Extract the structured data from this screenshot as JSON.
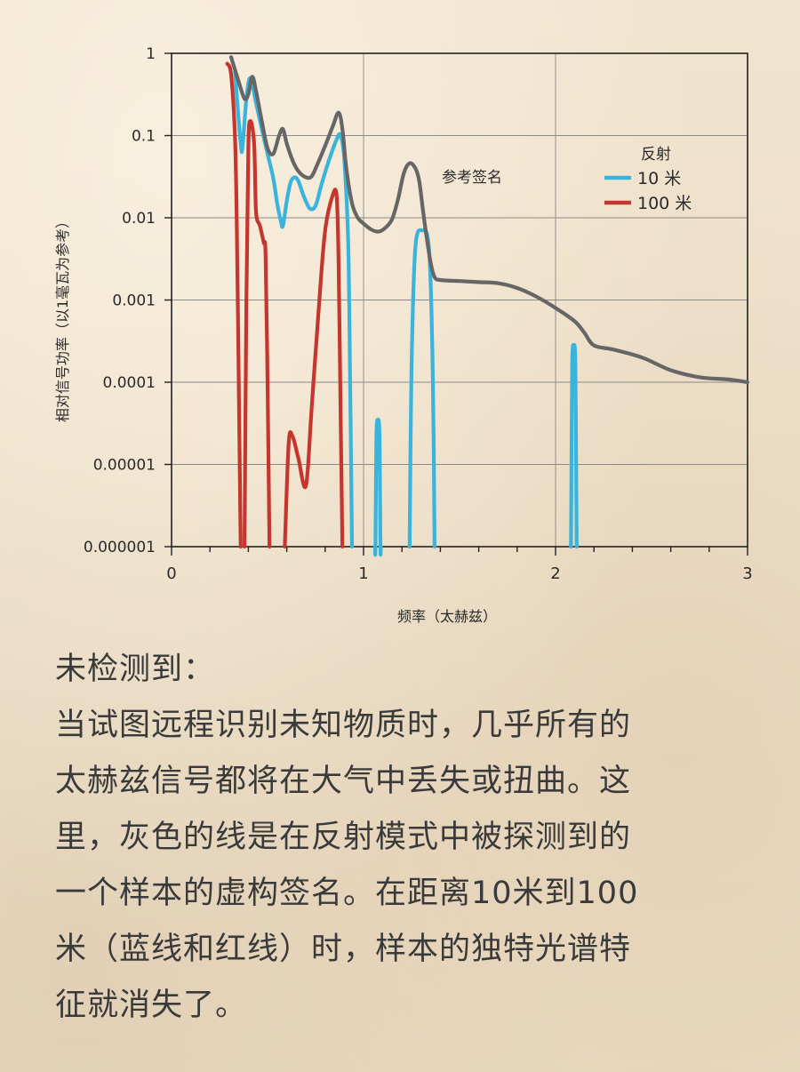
{
  "chart_data": {
    "type": "line",
    "title": "",
    "xlabel": "频率（太赫兹）",
    "ylabel": "相对信号功率（以1毫瓦为参考）",
    "xlim": [
      0,
      3
    ],
    "ylim": [
      1e-06,
      1
    ],
    "yscale": "log",
    "grid": true,
    "x_ticks": [
      "0",
      "1",
      "2",
      "3"
    ],
    "y_ticks": [
      "1",
      "0.1",
      "0.01",
      "0.001",
      "0.0001",
      "0.00001",
      "0.000001"
    ],
    "annotation": "参考签名",
    "legend": {
      "title": "反射",
      "placement": "top-right",
      "entries": [
        "10 米",
        "100 米"
      ]
    },
    "series": [
      {
        "key": "reference",
        "color": "#666666",
        "points": [
          [
            0.31,
            0.9
          ],
          [
            0.35,
            0.45
          ],
          [
            0.38,
            0.28
          ],
          [
            0.4,
            0.32
          ],
          [
            0.42,
            0.52
          ],
          [
            0.44,
            0.35
          ],
          [
            0.47,
            0.15
          ],
          [
            0.5,
            0.07
          ],
          [
            0.53,
            0.06
          ],
          [
            0.56,
            0.1
          ],
          [
            0.58,
            0.12
          ],
          [
            0.6,
            0.08
          ],
          [
            0.63,
            0.05
          ],
          [
            0.66,
            0.037
          ],
          [
            0.7,
            0.031
          ],
          [
            0.73,
            0.032
          ],
          [
            0.76,
            0.045
          ],
          [
            0.8,
            0.075
          ],
          [
            0.84,
            0.13
          ],
          [
            0.87,
            0.19
          ],
          [
            0.89,
            0.12
          ],
          [
            0.91,
            0.04
          ],
          [
            0.94,
            0.015
          ],
          [
            0.97,
            0.01
          ],
          [
            1.0,
            0.0085
          ],
          [
            1.04,
            0.0072
          ],
          [
            1.08,
            0.0068
          ],
          [
            1.12,
            0.0078
          ],
          [
            1.15,
            0.0098
          ],
          [
            1.18,
            0.017
          ],
          [
            1.21,
            0.035
          ],
          [
            1.24,
            0.046
          ],
          [
            1.27,
            0.04
          ],
          [
            1.29,
            0.028
          ],
          [
            1.31,
            0.012
          ],
          [
            1.33,
            0.0055
          ],
          [
            1.35,
            0.0028
          ],
          [
            1.37,
            0.0019
          ],
          [
            1.4,
            0.00175
          ],
          [
            1.5,
            0.0017
          ],
          [
            1.6,
            0.00165
          ],
          [
            1.7,
            0.0016
          ],
          [
            1.8,
            0.0014
          ],
          [
            1.9,
            0.0011
          ],
          [
            2.0,
            0.0008
          ],
          [
            2.1,
            0.00055
          ],
          [
            2.15,
            0.0004
          ],
          [
            2.2,
            0.00028
          ],
          [
            2.3,
            0.00025
          ],
          [
            2.45,
            0.0002
          ],
          [
            2.6,
            0.00014
          ],
          [
            2.75,
            0.000115
          ],
          [
            2.9,
            0.000108
          ],
          [
            3.0,
            0.0001
          ]
        ]
      },
      {
        "key": "10m",
        "color": "#3ab4dc",
        "points": [
          [
            0.33,
            0.6
          ],
          [
            0.36,
            0.08
          ],
          [
            0.37,
            0.075
          ],
          [
            0.39,
            0.28
          ],
          [
            0.41,
            0.5
          ],
          [
            0.44,
            0.25
          ],
          [
            0.47,
            0.12
          ],
          [
            0.5,
            0.06
          ],
          [
            0.53,
            0.03
          ],
          [
            0.55,
            0.015
          ],
          [
            0.57,
            0.009
          ],
          [
            0.58,
            0.008
          ],
          [
            0.6,
            0.016
          ],
          [
            0.62,
            0.027
          ],
          [
            0.64,
            0.031
          ],
          [
            0.66,
            0.028
          ],
          [
            0.69,
            0.018
          ],
          [
            0.72,
            0.013
          ],
          [
            0.75,
            0.014
          ],
          [
            0.78,
            0.025
          ],
          [
            0.82,
            0.05
          ],
          [
            0.86,
            0.09
          ],
          [
            0.88,
            0.1
          ],
          [
            0.9,
            0.05
          ],
          [
            0.92,
            0.005
          ],
          [
            0.93,
            0.0001
          ],
          [
            0.94,
            1e-06
          ]
        ],
        "peaks": [
          [
            1.06,
            1.09,
            3.5e-05
          ],
          [
            1.24,
            1.37,
            0.007
          ],
          [
            2.08,
            2.11,
            0.00028
          ]
        ]
      },
      {
        "key": "100m",
        "color": "#c4362e",
        "points": [
          [
            0.29,
            0.75
          ],
          [
            0.31,
            0.55
          ],
          [
            0.33,
            0.1
          ],
          [
            0.34,
            0.008
          ],
          [
            0.35,
            0.0001
          ],
          [
            0.36,
            1e-06
          ]
        ],
        "segments": [
          [
            [
              0.38,
              1e-06
            ],
            [
              0.39,
              0.001
            ],
            [
              0.4,
              0.07
            ],
            [
              0.41,
              0.15
            ],
            [
              0.43,
              0.08
            ],
            [
              0.44,
              0.012
            ],
            [
              0.46,
              0.008
            ],
            [
              0.48,
              0.005
            ],
            [
              0.49,
              0.0035
            ],
            [
              0.5,
              0.0001
            ],
            [
              0.51,
              1e-06
            ]
          ],
          [
            [
              0.59,
              1e-06
            ],
            [
              0.61,
              1.8e-05
            ],
            [
              0.63,
              2.2e-05
            ],
            [
              0.66,
              1.2e-05
            ],
            [
              0.7,
              5.5e-06
            ],
            [
              0.73,
              5e-05
            ],
            [
              0.77,
              0.001
            ],
            [
              0.8,
              0.007
            ],
            [
              0.84,
              0.019
            ],
            [
              0.86,
              0.018
            ],
            [
              0.87,
              0.003
            ],
            [
              0.88,
              5e-05
            ],
            [
              0.89,
              1e-06
            ]
          ]
        ]
      }
    ]
  },
  "caption": {
    "heading": "未检测到：",
    "lines": [
      "当试图远程识别未知物质时，几乎所有的",
      "太赫兹信号都将在大气中丢失或扭曲。这",
      "里，灰色的线是在反射模式中被探测到的",
      "一个样本的虚构签名。在距离10米到100",
      "米（蓝线和红线）时，样本的独特光谱特",
      "征就消失了。"
    ]
  }
}
